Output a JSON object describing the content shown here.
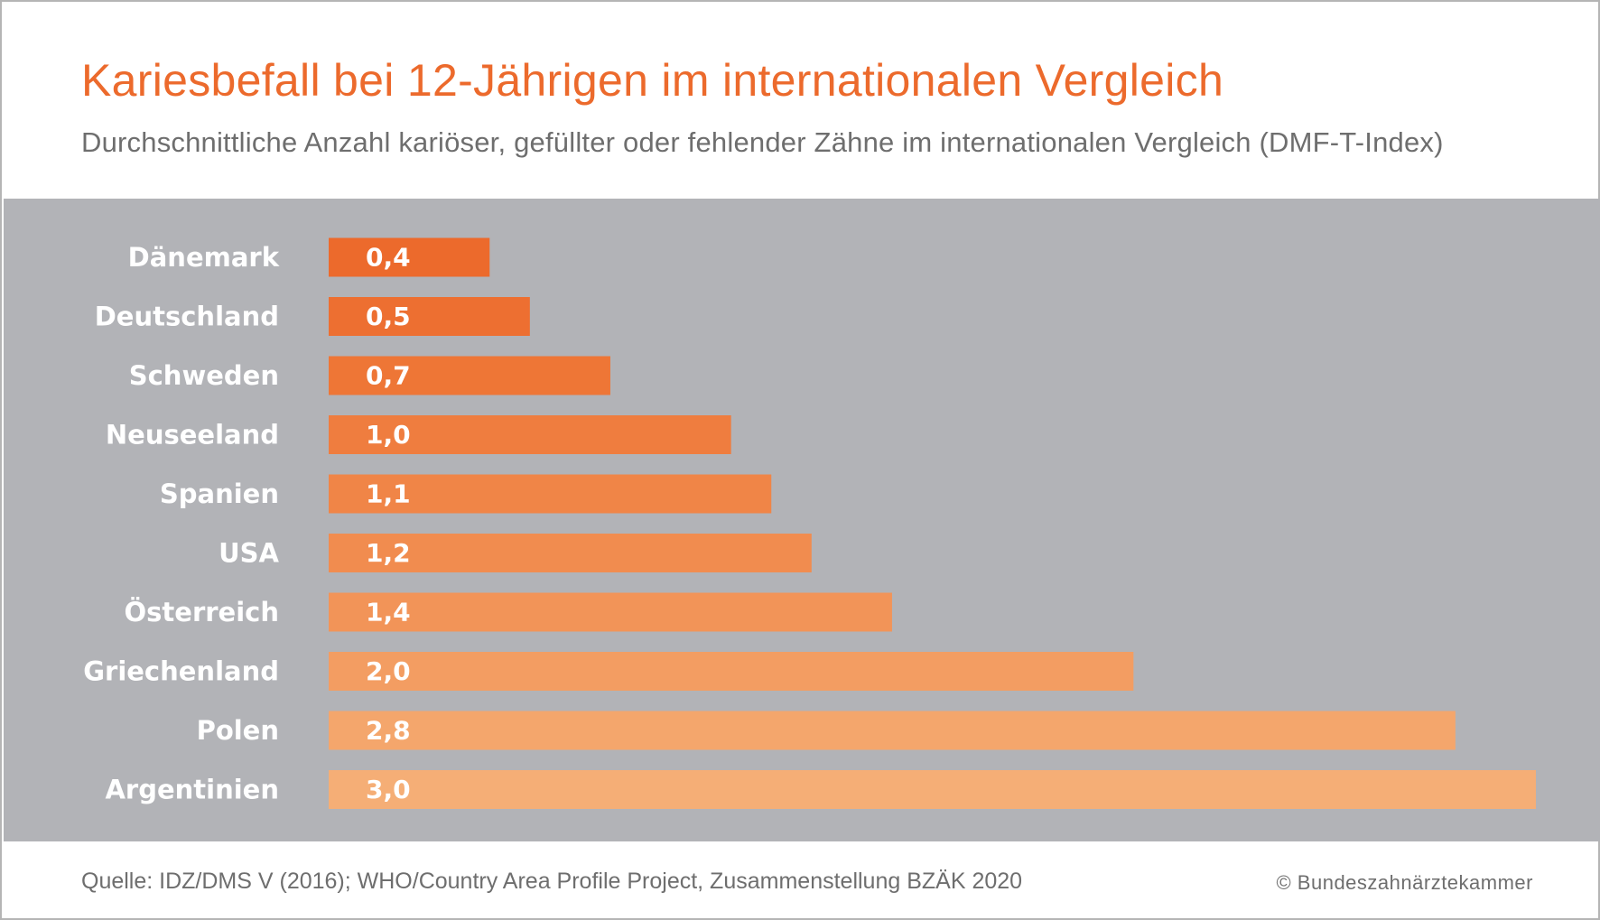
{
  "header": {
    "title": "Kariesbefall bei 12-Jährigen im internationalen Vergleich",
    "subtitle": "Durchschnittliche Anzahl kariöser, gefüllter oder fehlender Zähne im internationalen Vergleich (DMF-T-Index)"
  },
  "footer": {
    "source": "Quelle: IDZ/DMS V (2016); WHO/Country Area Profile Project, Zusammenstellung BZÄK 2020",
    "copyright": "© Bundeszahnärztekammer"
  },
  "chart_data": {
    "type": "bar",
    "orientation": "horizontal",
    "title": "Kariesbefall bei 12-Jährigen im internationalen Vergleich",
    "subtitle": "Durchschnittliche Anzahl kariöser, gefüllter oder fehlender Zähne im internationalen Vergleich (DMF-T-Index)",
    "categories": [
      "Dänemark",
      "Deutschland",
      "Schweden",
      "Neuseeland",
      "Spanien",
      "USA",
      "Österreich",
      "Griechenland",
      "Polen",
      "Argentinien"
    ],
    "values": [
      0.4,
      0.5,
      0.7,
      1.0,
      1.1,
      1.2,
      1.4,
      2.0,
      2.8,
      3.0
    ],
    "value_labels": [
      "0,4",
      "0,5",
      "0,7",
      "1,0",
      "1,1",
      "1,2",
      "1,4",
      "2,0",
      "2,8",
      "3,0"
    ],
    "xlim": [
      0,
      3.0
    ],
    "grid": false,
    "legend": "none",
    "colors": {
      "background": "#b2b3b7",
      "bar_gradient": [
        "#ec6a2c",
        "#ed6f31",
        "#ee7636",
        "#ef7d3f",
        "#f08547",
        "#f18c4f",
        "#f29458",
        "#f39d62",
        "#f4a66c",
        "#f5ae76"
      ],
      "title": "#ec6a2c",
      "text": "#6e6e6e"
    }
  }
}
